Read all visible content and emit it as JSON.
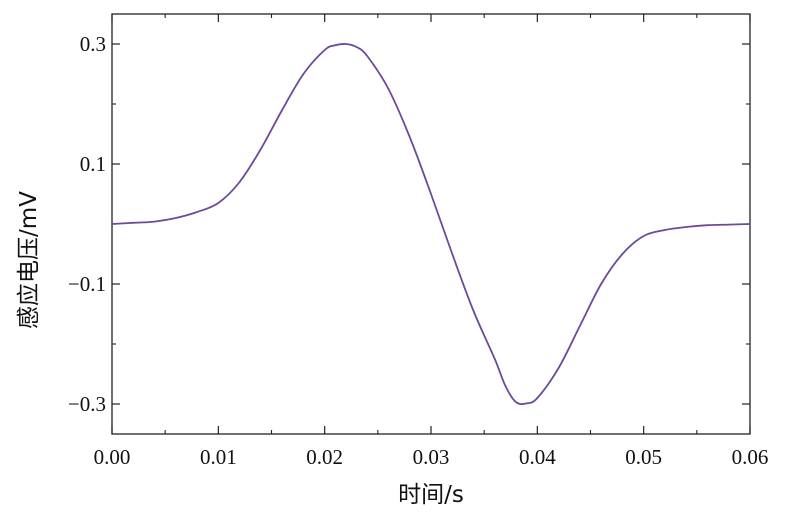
{
  "chart_data": {
    "type": "line",
    "title": "",
    "xlabel": "时间/s",
    "ylabel": "感应电压/mV",
    "xlim": [
      0,
      0.06
    ],
    "ylim": [
      -0.35,
      0.35
    ],
    "x_ticks": [
      0.0,
      0.01,
      0.02,
      0.03,
      0.04,
      0.05,
      0.06
    ],
    "x_tick_labels": [
      "0.00",
      "0.01",
      "0.02",
      "0.03",
      "0.04",
      "0.05",
      "0.06"
    ],
    "y_ticks": [
      0.3,
      0.1,
      -0.1,
      -0.3
    ],
    "y_tick_labels": [
      "0.3",
      "0.1",
      "−0.1",
      "−0.3"
    ],
    "y_minor_ticks": [
      0.2,
      0.0,
      -0.2
    ],
    "grid": false,
    "legend": "none",
    "series": [
      {
        "color": "#6b4a9a",
        "x": [
          0.0,
          0.002,
          0.004,
          0.006,
          0.008,
          0.01,
          0.012,
          0.014,
          0.016,
          0.018,
          0.02,
          0.021,
          0.022,
          0.023,
          0.024,
          0.026,
          0.028,
          0.03,
          0.032,
          0.034,
          0.036,
          0.037,
          0.038,
          0.039,
          0.04,
          0.042,
          0.044,
          0.046,
          0.048,
          0.05,
          0.052,
          0.054,
          0.056,
          0.058,
          0.06
        ],
        "y": [
          0.0,
          0.002,
          0.004,
          0.01,
          0.02,
          0.035,
          0.07,
          0.125,
          0.19,
          0.25,
          0.29,
          0.298,
          0.3,
          0.295,
          0.28,
          0.225,
          0.145,
          0.05,
          -0.05,
          -0.145,
          -0.225,
          -0.27,
          -0.297,
          -0.299,
          -0.29,
          -0.24,
          -0.17,
          -0.1,
          -0.05,
          -0.02,
          -0.01,
          -0.005,
          -0.002,
          -0.001,
          0.0
        ]
      }
    ]
  }
}
